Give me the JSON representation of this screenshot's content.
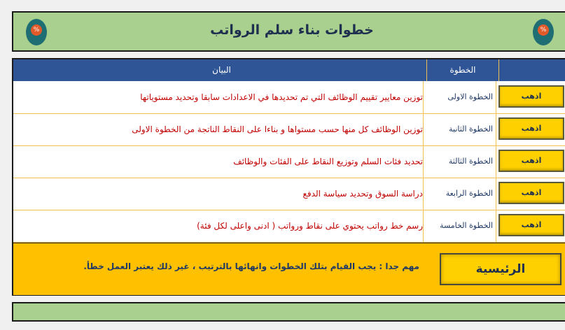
{
  "header": {
    "title": "خطوات بناء سلم الرواتب",
    "icon": "percent-badge-icon"
  },
  "table": {
    "col_desc": "البيان",
    "col_step": "الخطوة",
    "rows": [
      {
        "button": "اذهب",
        "step": "الخطوة الاولى",
        "desc": "توزين معايير تقييم الوظائف التي تم تحديدها في الاعدادات سابقا وتحديد مستوياتها"
      },
      {
        "button": "اذهب",
        "step": "الخطوة الثانية",
        "desc": "توزين الوظائف كل منها حسب مستواها و بناءا على النقاط الناتجة من الخطوة الاولى"
      },
      {
        "button": "اذهب",
        "step": "الخطوة الثالثة",
        "desc": "تحديد فئات السلم وتوزيع النقاط على الفئات والوظائف"
      },
      {
        "button": "اذهب",
        "step": "الخطوة الرابعة",
        "desc": "دراسة السوق وتحديد سياسة الدفع"
      },
      {
        "button": "اذهب",
        "step": "الخطوة الخامسة",
        "desc": "رسم خط رواتب يحتوي على نقاط ورواتب ( ادنى واعلى لكل فئة)"
      }
    ]
  },
  "footer": {
    "note": "مهم جدا : يجب القيام بتلك الخطوات وانهائها بالترتيب ، غير ذلك يعتبر العمل خطأ.",
    "home_button": "الرئيسية"
  },
  "colors": {
    "green": "#a9d08e",
    "blue": "#2f5597",
    "yellow": "#ffc000",
    "red_text": "#c00000"
  }
}
